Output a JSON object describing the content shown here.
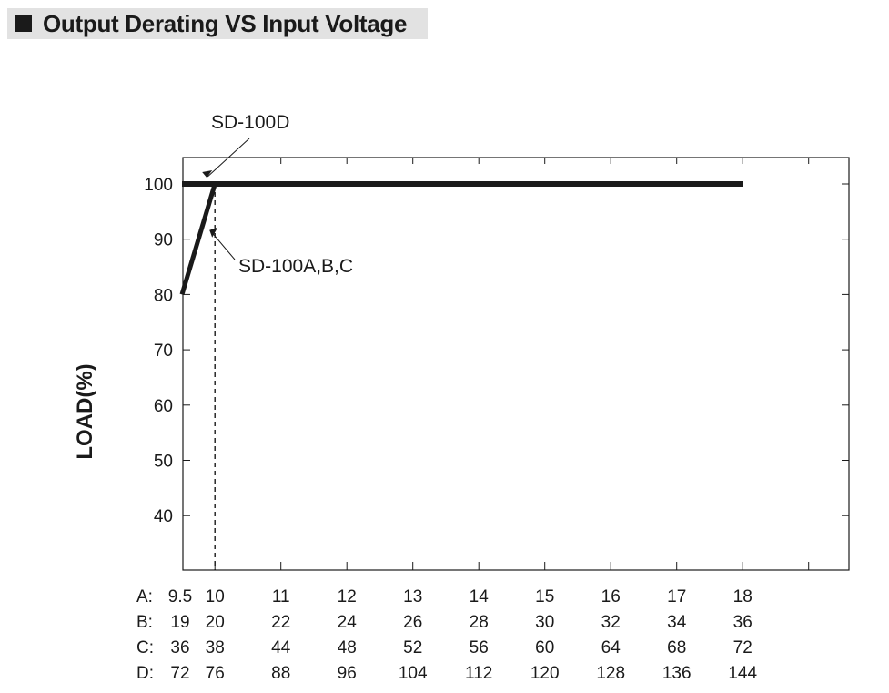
{
  "header": {
    "title": "Output Derating VS Input Voltage"
  },
  "chart_data": {
    "type": "line",
    "ylabel": "LOAD(%)",
    "ylim": [
      33,
      103
    ],
    "yticks": [
      100,
      90,
      80,
      70,
      60,
      50,
      40
    ],
    "x_columns": 11,
    "x_rows": [
      {
        "label": "A:",
        "values": [
          "9.5",
          "10",
          "11",
          "12",
          "13",
          "14",
          "15",
          "16",
          "17",
          "18"
        ]
      },
      {
        "label": "B:",
        "values": [
          "19",
          "20",
          "22",
          "24",
          "26",
          "28",
          "30",
          "32",
          "34",
          "36"
        ]
      },
      {
        "label": "C:",
        "values": [
          "36",
          "38",
          "44",
          "48",
          "52",
          "56",
          "60",
          "64",
          "68",
          "72"
        ]
      },
      {
        "label": "D:",
        "values": [
          "72",
          "76",
          "88",
          "96",
          "104",
          "112",
          "120",
          "128",
          "136",
          "144"
        ]
      }
    ],
    "series": [
      {
        "name": "SD-100D",
        "x": [
          9.5,
          18
        ],
        "y": [
          100,
          100
        ]
      },
      {
        "name": "SD-100A,B,C",
        "x": [
          9.5,
          10
        ],
        "y": [
          80,
          100
        ]
      }
    ],
    "reference_lines": [
      {
        "x": 10,
        "style": "dashed"
      }
    ],
    "annotations": [
      {
        "text": "SD-100D",
        "x": 10,
        "y": 100
      },
      {
        "text": "SD-100A,B,C",
        "x": 10,
        "y": 90
      }
    ],
    "grid": false
  }
}
